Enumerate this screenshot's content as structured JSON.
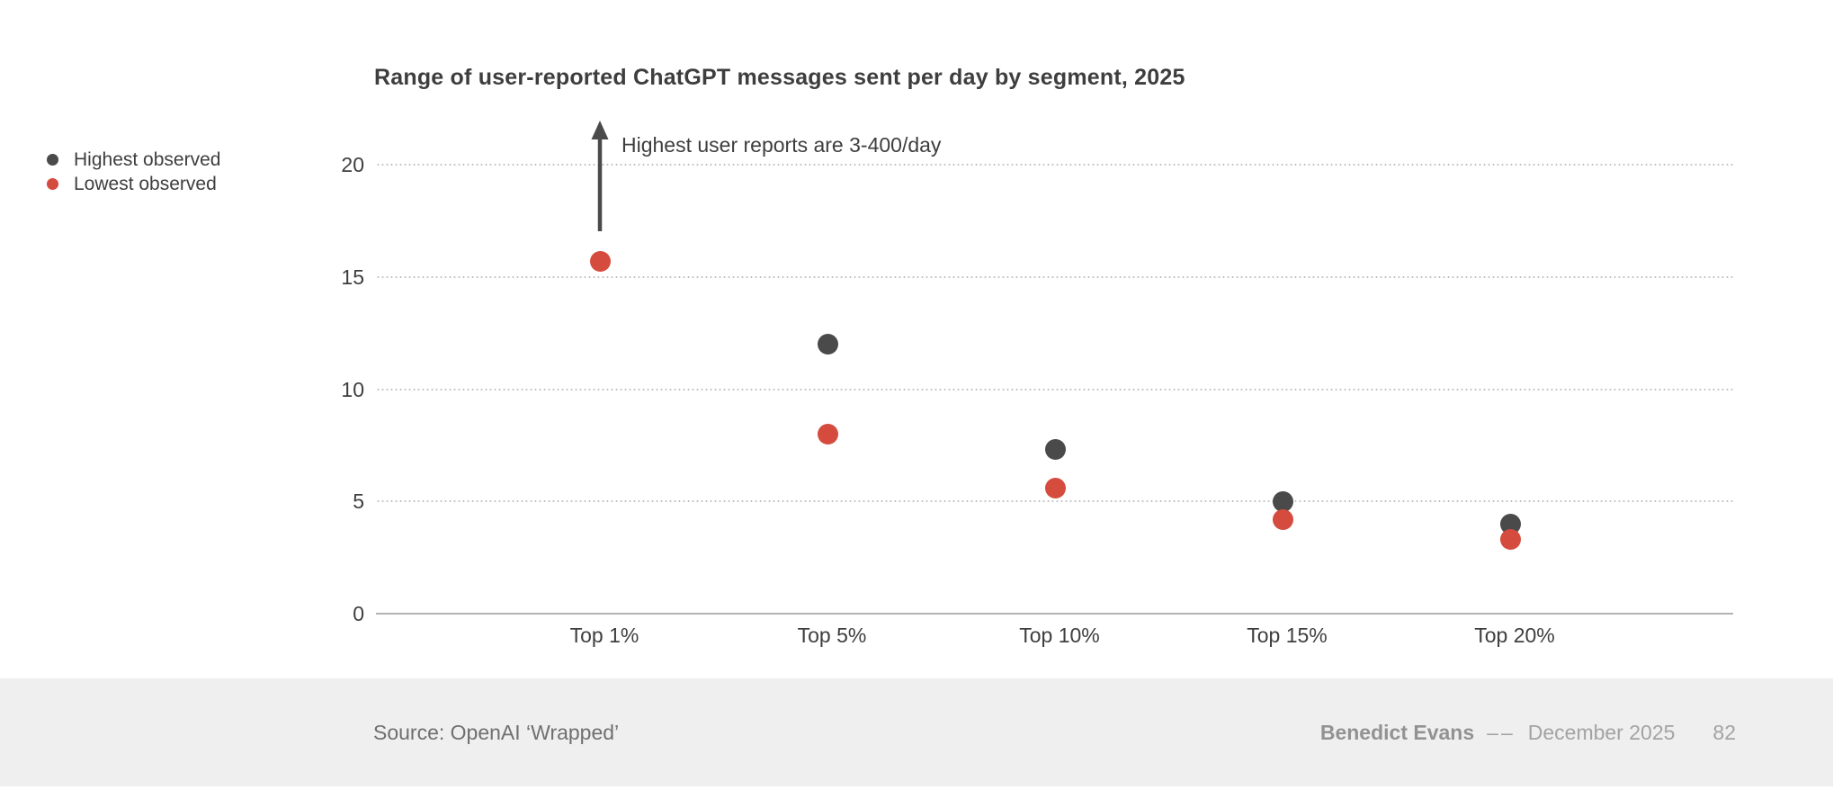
{
  "title": "Range of user-reported ChatGPT messages sent per day by segment, 2025",
  "legend": {
    "items": [
      {
        "label": "Highest observed",
        "color": "#4a4a4a"
      },
      {
        "label": "Lowest observed",
        "color": "#d54b3d"
      }
    ]
  },
  "annotation": {
    "text": "Highest user reports are 3-400/day"
  },
  "footer": {
    "source": "Source: OpenAI ‘Wrapped’",
    "author": "Benedict Evans",
    "separator": "––",
    "date": "December 2025",
    "page": "82"
  },
  "colors": {
    "text_dark": "#3e3e3e",
    "highest_series": "#4a4a4a",
    "lowest_series": "#d54b3d",
    "gridline": "#bdbdbd",
    "axis_line": "#b3b3b3",
    "footer_background": "#efefef",
    "source_text": "#6f6f6f",
    "credit_text": "#a3a3a3",
    "author_text": "#929292"
  },
  "chart_data": {
    "type": "scatter",
    "title": "Range of user-reported ChatGPT messages sent per day by segment, 2025",
    "categories": [
      "Top 1%",
      "Top 5%",
      "Top 10%",
      "Top 15%",
      "Top 20%"
    ],
    "series": [
      {
        "name": "Highest observed",
        "color": "#4a4a4a",
        "values": [
          null,
          12,
          7.3,
          5,
          4
        ]
      },
      {
        "name": "Lowest observed",
        "color": "#d54b3d",
        "values": [
          15.7,
          8,
          5.6,
          4.2,
          3.3
        ]
      }
    ],
    "xlabel": "",
    "ylabel": "",
    "yticks": [
      0,
      5,
      10,
      15,
      20
    ],
    "ylim": [
      0,
      22
    ],
    "grid": "horizontal-dotted",
    "legend_position": "top-left",
    "annotation": {
      "text": "Highest user reports are 3-400/day",
      "category_index": 0,
      "series": "Highest observed",
      "note": "value off-scale, indicated by upward arrow",
      "arrow_value_from": 17,
      "arrow_value_to": 22
    }
  }
}
